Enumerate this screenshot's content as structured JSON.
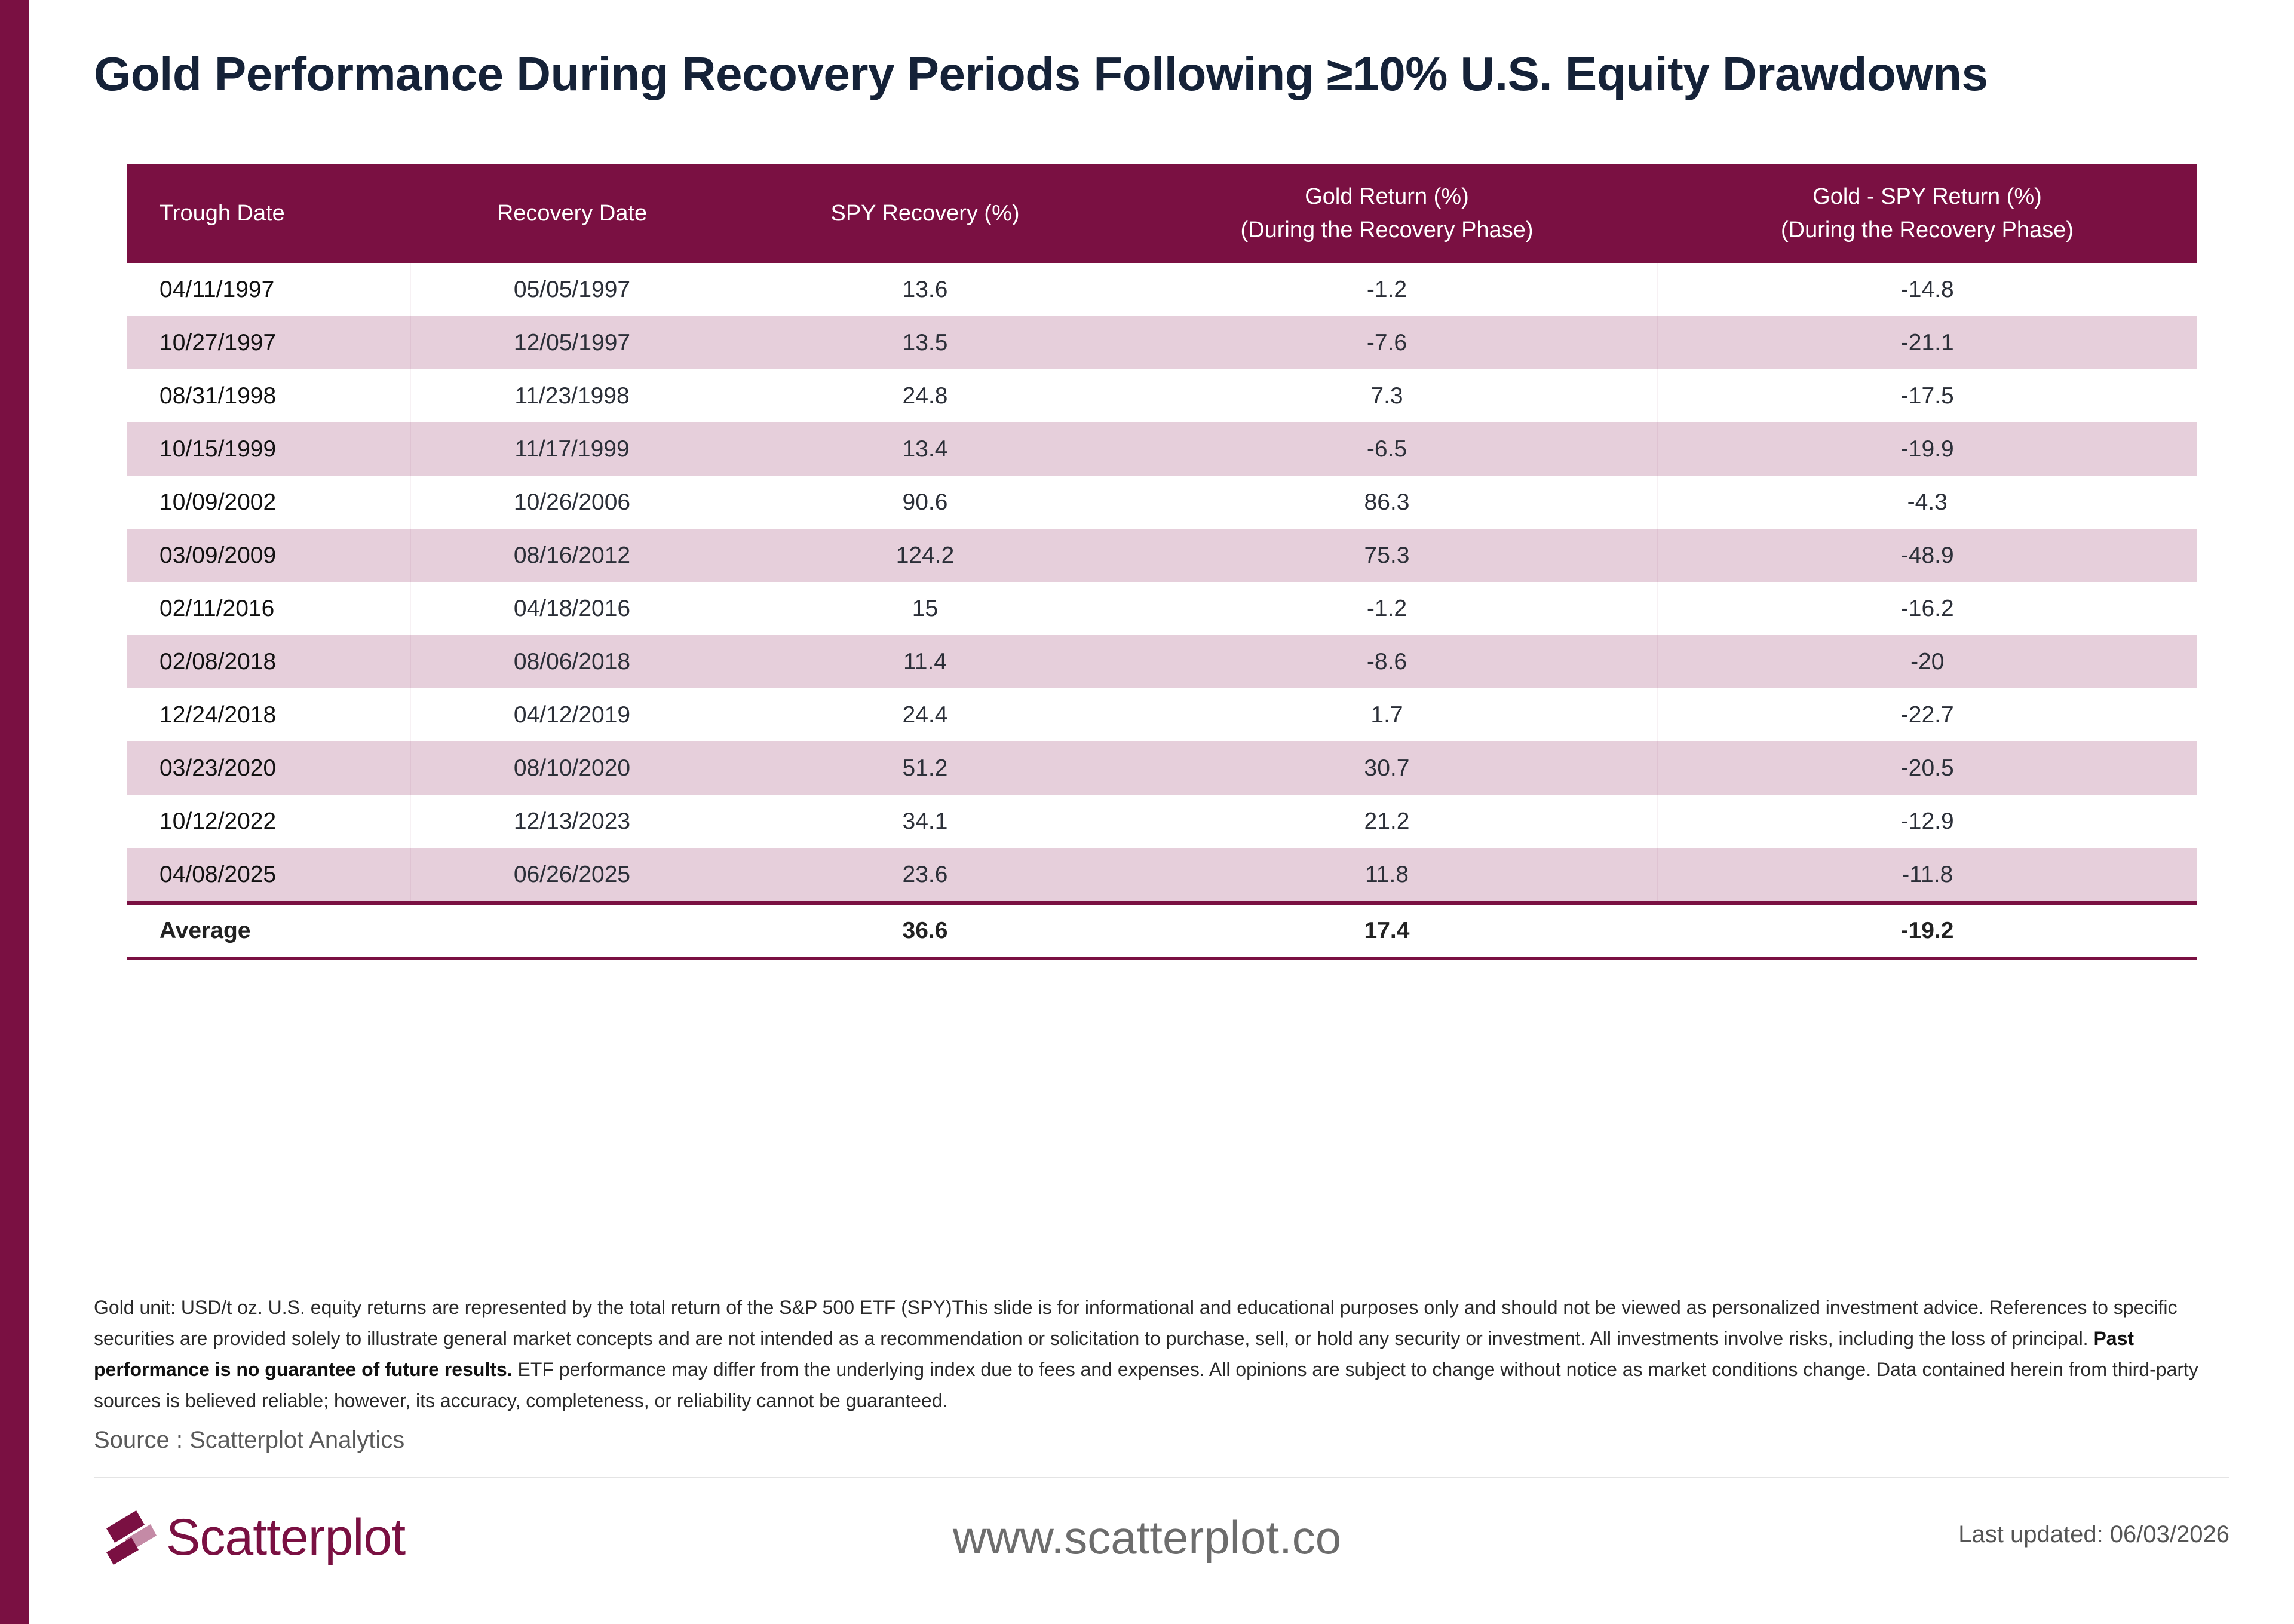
{
  "title": "Gold Performance During Recovery Periods Following ≥10% U.S. Equity Drawdowns",
  "table": {
    "headers": [
      {
        "line1": "Trough Date",
        "line2": ""
      },
      {
        "line1": "Recovery Date",
        "line2": ""
      },
      {
        "line1": "SPY Recovery (%)",
        "line2": ""
      },
      {
        "line1": "Gold Return (%)",
        "line2": "(During the Recovery Phase)"
      },
      {
        "line1": "Gold - SPY Return (%)",
        "line2": "(During the Recovery Phase)"
      }
    ],
    "rows": [
      [
        "04/11/1997",
        "05/05/1997",
        "13.6",
        "-1.2",
        "-14.8"
      ],
      [
        "10/27/1997",
        "12/05/1997",
        "13.5",
        "-7.6",
        "-21.1"
      ],
      [
        "08/31/1998",
        "11/23/1998",
        "24.8",
        "7.3",
        "-17.5"
      ],
      [
        "10/15/1999",
        "11/17/1999",
        "13.4",
        "-6.5",
        "-19.9"
      ],
      [
        "10/09/2002",
        "10/26/2006",
        "90.6",
        "86.3",
        "-4.3"
      ],
      [
        "03/09/2009",
        "08/16/2012",
        "124.2",
        "75.3",
        "-48.9"
      ],
      [
        "02/11/2016",
        "04/18/2016",
        "15",
        "-1.2",
        "-16.2"
      ],
      [
        "02/08/2018",
        "08/06/2018",
        "11.4",
        "-8.6",
        "-20"
      ],
      [
        "12/24/2018",
        "04/12/2019",
        "24.4",
        "1.7",
        "-22.7"
      ],
      [
        "03/23/2020",
        "08/10/2020",
        "51.2",
        "30.7",
        "-20.5"
      ],
      [
        "10/12/2022",
        "12/13/2023",
        "34.1",
        "21.2",
        "-12.9"
      ],
      [
        "04/08/2025",
        "06/26/2025",
        "23.6",
        "11.8",
        "-11.8"
      ]
    ],
    "average": [
      "Average",
      "",
      "36.6",
      "17.4",
      "-19.2"
    ]
  },
  "footnote": {
    "part1": "Gold unit: USD/t oz. U.S. equity returns are represented by the total return of the S&P 500 ETF (SPY)This slide is for informational and educational purposes only and should not be viewed as personalized investment advice. References to specific securities are provided solely to illustrate general market concepts and are not intended as a recommendation or solicitation to purchase, sell, or hold any security or investment. All investments involve risks, including the loss of principal. ",
    "bold": "Past performance is no guarantee of future results.",
    "part2": " ETF performance may differ from the underlying index due to fees and expenses. All opinions are subject to change without notice as market conditions change. Data contained herein from third-party sources is believed reliable; however, its accuracy, completeness, or reliability cannot be guaranteed."
  },
  "source": "Source : Scatterplot Analytics",
  "footer": {
    "brand": "Scatterplot",
    "website": "www.scatterplot.co",
    "last_updated": "Last updated: 06/03/2026"
  },
  "colors": {
    "accent": "#7a1042",
    "row_alt": "#e6cfdb",
    "logo_light": "#c48aa6"
  }
}
